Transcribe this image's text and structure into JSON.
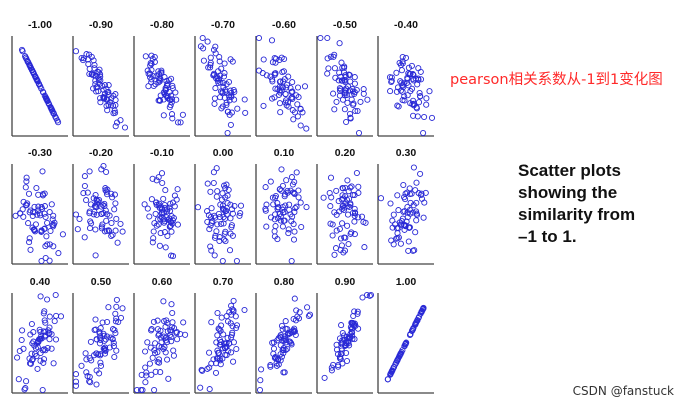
{
  "captions": {
    "chinese": "pearson相关系数从-1到1变化图",
    "english": "Scatter plots\nshowing the\nsimilarity from\n–1 to 1."
  },
  "watermark": "CSDN @fanstuck",
  "colors": {
    "points": "#2a2ad6",
    "axes": "#444444",
    "caption_red": "#ff2a2a"
  },
  "chart_data": {
    "type": "scatter",
    "title": "",
    "xlabel": "",
    "ylabel": "",
    "marker": "open-circle",
    "grid": false,
    "legend": "none",
    "panels": [
      {
        "label": "-1.00",
        "r": -1.0
      },
      {
        "label": "-0.90",
        "r": -0.9
      },
      {
        "label": "-0.80",
        "r": -0.8
      },
      {
        "label": "-0.70",
        "r": -0.7
      },
      {
        "label": "-0.60",
        "r": -0.6
      },
      {
        "label": "-0.50",
        "r": -0.5
      },
      {
        "label": "-0.40",
        "r": -0.4
      },
      {
        "label": "-0.30",
        "r": -0.3
      },
      {
        "label": "-0.20",
        "r": -0.2
      },
      {
        "label": "-0.10",
        "r": -0.1
      },
      {
        "label": "0.00",
        "r": 0.0
      },
      {
        "label": "0.10",
        "r": 0.1
      },
      {
        "label": "0.20",
        "r": 0.2
      },
      {
        "label": "0.30",
        "r": 0.3
      },
      {
        "label": "0.40",
        "r": 0.4
      },
      {
        "label": "0.50",
        "r": 0.5
      },
      {
        "label": "0.60",
        "r": 0.6
      },
      {
        "label": "0.70",
        "r": 0.7
      },
      {
        "label": "0.80",
        "r": 0.8
      },
      {
        "label": "0.90",
        "r": 0.9
      },
      {
        "label": "1.00",
        "r": 1.0
      }
    ]
  }
}
